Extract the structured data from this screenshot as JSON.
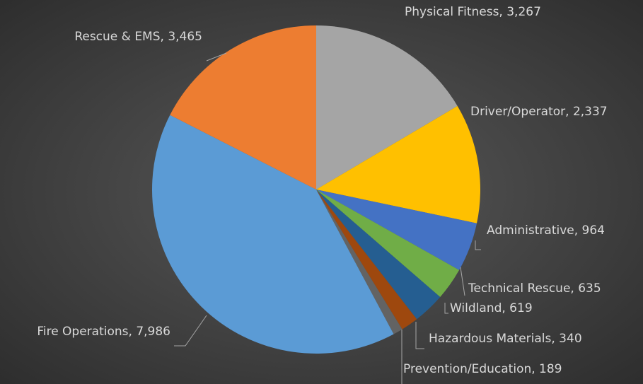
{
  "chart_data": {
    "type": "pie",
    "values": [
      3267,
      2337,
      964,
      635,
      619,
      340,
      189,
      7986,
      3465
    ],
    "value_labels": [
      "Physical Fitness, 3,267",
      "Driver/Operator, 2,337",
      "Administrative, 964",
      "Technical Rescue, 635",
      "Wildland, 619",
      "Hazardous Materials, 340",
      "Prevention/Education, 189",
      "Fire Operations, 7,986",
      "Rescue & EMS, 3,465"
    ],
    "colors": [
      "#a5a5a5",
      "#ffc000",
      "#4472c4",
      "#70ad47",
      "#255e91",
      "#9e480e",
      "#636363",
      "#5b9bd5",
      "#ed7d31"
    ]
  }
}
